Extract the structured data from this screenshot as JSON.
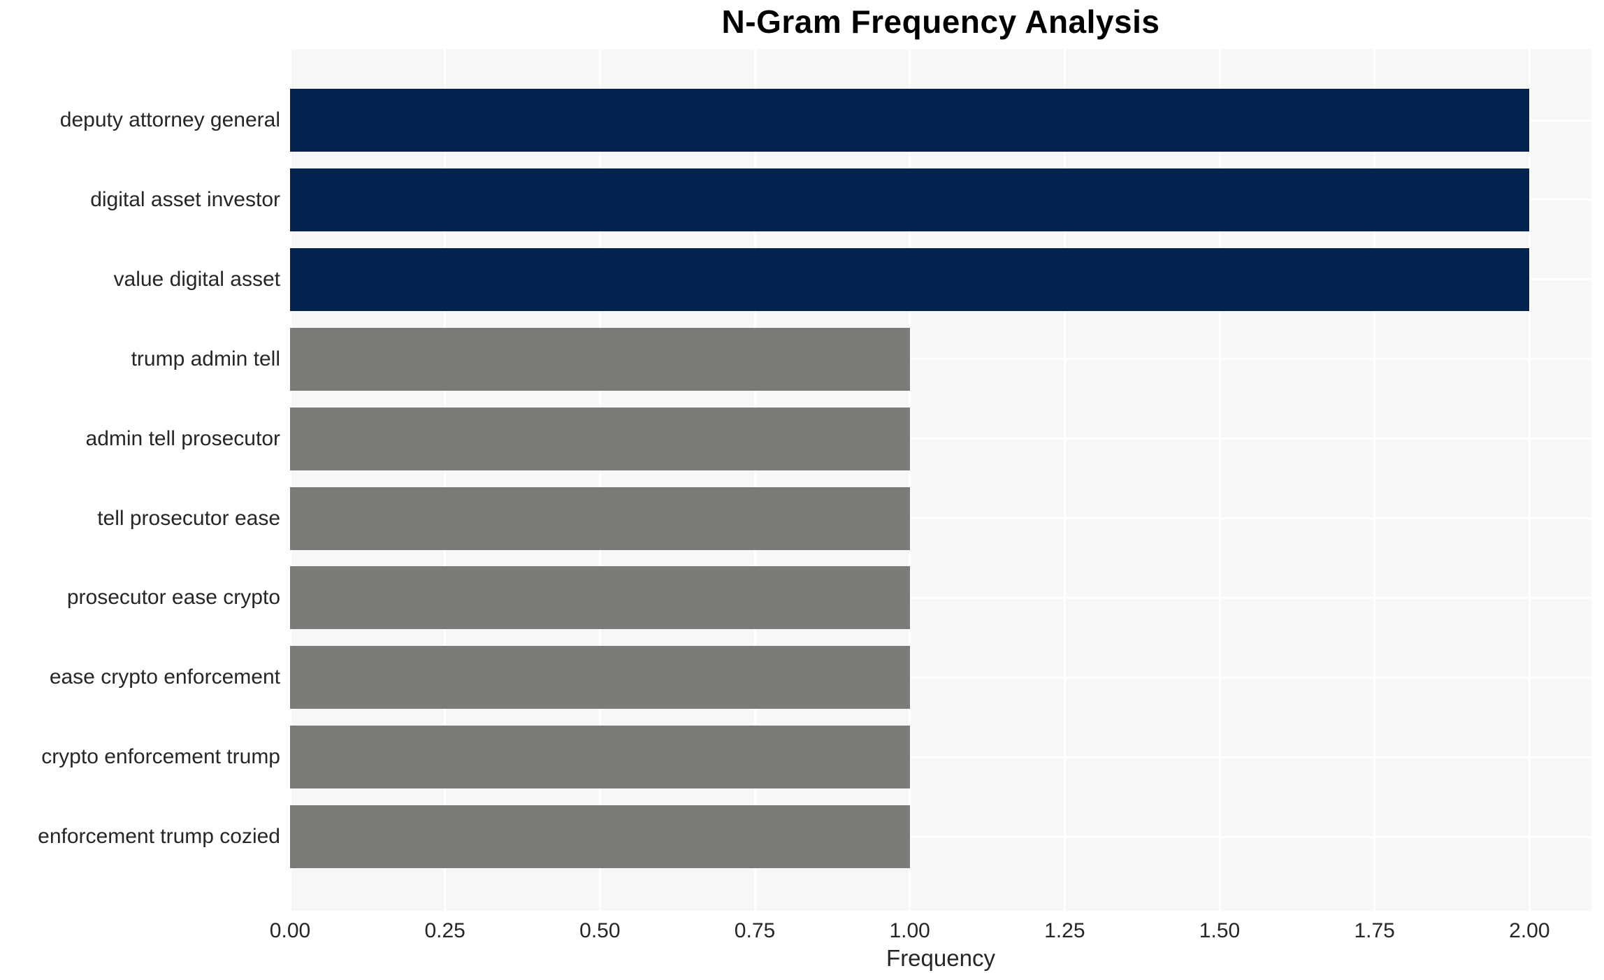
{
  "chart_data": {
    "type": "bar",
    "orientation": "horizontal",
    "title": "N-Gram Frequency Analysis",
    "xlabel": "Frequency",
    "ylabel": "",
    "categories": [
      "deputy attorney general",
      "digital asset investor",
      "value digital asset",
      "trump admin tell",
      "admin tell prosecutor",
      "tell prosecutor ease",
      "prosecutor ease crypto",
      "ease crypto enforcement",
      "crypto enforcement trump",
      "enforcement trump cozied"
    ],
    "values": [
      2,
      2,
      2,
      1,
      1,
      1,
      1,
      1,
      1,
      1
    ],
    "bar_colors": [
      "#03234e",
      "#03234e",
      "#03234e",
      "#7b7b78",
      "#7b7b78",
      "#7b7b78",
      "#7b7b78",
      "#7b7b78",
      "#7b7b78",
      "#7b7b78"
    ],
    "x_ticks": [
      0.0,
      0.25,
      0.5,
      0.75,
      1.0,
      1.25,
      1.5,
      1.75,
      2.0
    ],
    "x_tick_labels": [
      "0.00",
      "0.25",
      "0.50",
      "0.75",
      "1.00",
      "1.25",
      "1.50",
      "1.75",
      "2.00"
    ],
    "xlim": [
      0,
      2.1
    ],
    "grid": true,
    "legend": false,
    "colors": {
      "plot_background": "#f7f7f7",
      "grid_color": "#ffffff",
      "navy_bar": "#03234e",
      "gray_bar": "#7b7b78",
      "text": "#262626",
      "title": "#000000"
    }
  }
}
